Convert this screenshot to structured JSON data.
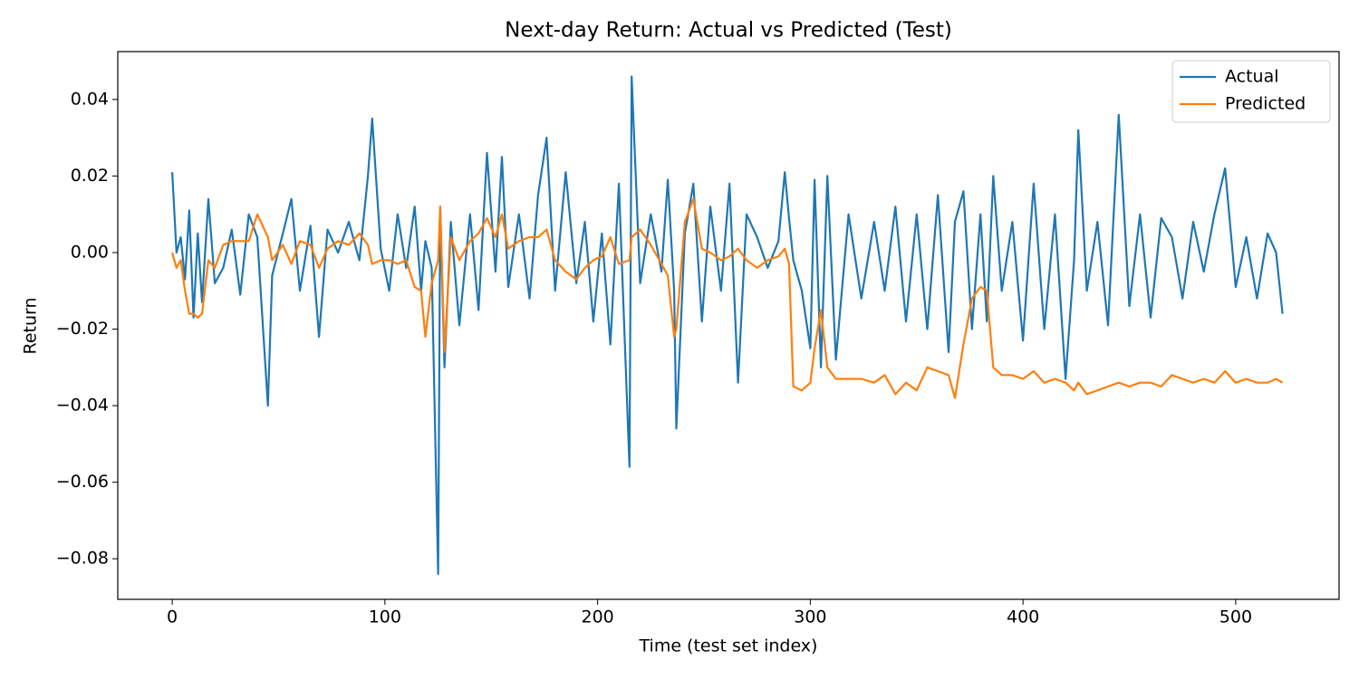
{
  "chart_data": {
    "type": "line",
    "title": "Next-day Return: Actual vs Predicted (Test)",
    "x_label": "Time (test set index)",
    "y_label": "Return",
    "x": [
      0,
      2,
      4,
      6,
      8,
      10,
      12,
      14,
      17,
      20,
      24,
      28,
      32,
      36,
      40,
      45,
      47,
      52,
      56,
      60,
      65,
      69,
      73,
      78,
      83,
      88,
      92,
      94,
      98,
      102,
      106,
      110,
      114,
      117,
      119,
      122,
      125,
      126,
      128,
      131,
      135,
      140,
      144,
      148,
      152,
      155,
      158,
      163,
      168,
      172,
      176,
      180,
      185,
      190,
      194,
      198,
      202,
      206,
      210,
      215,
      216,
      220,
      225,
      230,
      233,
      236,
      237,
      241,
      245,
      249,
      253,
      258,
      262,
      266,
      270,
      275,
      280,
      285,
      288,
      290,
      292,
      296,
      300,
      302,
      305,
      308,
      312,
      318,
      324,
      330,
      335,
      340,
      345,
      350,
      355,
      360,
      365,
      368,
      372,
      376,
      380,
      383,
      386,
      390,
      395,
      400,
      405,
      410,
      415,
      420,
      424,
      426,
      430,
      435,
      440,
      445,
      450,
      455,
      460,
      465,
      470,
      475,
      480,
      485,
      490,
      495,
      500,
      505,
      510,
      515,
      519,
      522
    ],
    "series": [
      {
        "name": "Actual",
        "color": "#1f77b4",
        "values": [
          0.021,
          0.0,
          0.004,
          -0.007,
          0.011,
          -0.017,
          0.005,
          -0.013,
          0.014,
          -0.008,
          -0.004,
          0.006,
          -0.011,
          0.01,
          0.004,
          -0.04,
          -0.006,
          0.005,
          0.014,
          -0.01,
          0.007,
          -0.022,
          0.006,
          0.0,
          0.008,
          -0.002,
          0.02,
          0.035,
          0.001,
          -0.01,
          0.01,
          -0.004,
          0.012,
          -0.01,
          0.003,
          -0.004,
          -0.084,
          0.012,
          -0.03,
          0.008,
          -0.019,
          0.01,
          -0.015,
          0.026,
          -0.005,
          0.025,
          -0.009,
          0.01,
          -0.012,
          0.015,
          0.03,
          -0.01,
          0.021,
          -0.008,
          0.008,
          -0.018,
          0.005,
          -0.024,
          0.018,
          -0.056,
          0.046,
          -0.008,
          0.01,
          -0.005,
          0.019,
          -0.01,
          -0.046,
          0.005,
          0.018,
          -0.018,
          0.012,
          -0.01,
          0.018,
          -0.034,
          0.01,
          0.004,
          -0.004,
          0.003,
          0.021,
          0.009,
          -0.002,
          -0.01,
          -0.025,
          0.019,
          -0.03,
          0.02,
          -0.028,
          0.01,
          -0.012,
          0.008,
          -0.01,
          0.012,
          -0.018,
          0.01,
          -0.02,
          0.015,
          -0.026,
          0.008,
          0.016,
          -0.02,
          0.01,
          -0.018,
          0.02,
          -0.01,
          0.008,
          -0.023,
          0.018,
          -0.02,
          0.01,
          -0.033,
          -0.002,
          0.032,
          -0.01,
          0.008,
          -0.019,
          0.036,
          -0.014,
          0.01,
          -0.017,
          0.009,
          0.004,
          -0.012,
          0.008,
          -0.005,
          0.01,
          0.022,
          -0.009,
          0.004,
          -0.012,
          0.005,
          0.0,
          -0.016
        ]
      },
      {
        "name": "Predicted",
        "color": "#ff7f0e",
        "values": [
          0.0,
          -0.004,
          -0.002,
          -0.01,
          -0.016,
          -0.016,
          -0.017,
          -0.016,
          -0.002,
          -0.004,
          0.002,
          0.003,
          0.003,
          0.003,
          0.01,
          0.004,
          -0.002,
          0.002,
          -0.003,
          0.003,
          0.002,
          -0.004,
          0.001,
          0.003,
          0.002,
          0.005,
          0.002,
          -0.003,
          -0.002,
          -0.002,
          -0.003,
          -0.002,
          -0.009,
          -0.01,
          -0.022,
          -0.008,
          -0.002,
          0.012,
          -0.026,
          0.004,
          -0.002,
          0.003,
          0.005,
          0.009,
          0.004,
          0.01,
          0.001,
          0.003,
          0.004,
          0.004,
          0.006,
          -0.002,
          -0.005,
          -0.007,
          -0.004,
          -0.002,
          -0.001,
          0.004,
          -0.003,
          -0.002,
          0.004,
          0.006,
          0.002,
          -0.003,
          -0.006,
          -0.022,
          -0.02,
          0.008,
          0.014,
          0.001,
          0.0,
          -0.002,
          -0.001,
          0.001,
          -0.002,
          -0.004,
          -0.002,
          -0.001,
          0.001,
          -0.003,
          -0.035,
          -0.036,
          -0.034,
          -0.025,
          -0.015,
          -0.03,
          -0.033,
          -0.033,
          -0.033,
          -0.034,
          -0.032,
          -0.037,
          -0.034,
          -0.036,
          -0.03,
          -0.031,
          -0.032,
          -0.038,
          -0.024,
          -0.012,
          -0.009,
          -0.01,
          -0.03,
          -0.032,
          -0.032,
          -0.033,
          -0.031,
          -0.034,
          -0.033,
          -0.034,
          -0.036,
          -0.034,
          -0.037,
          -0.036,
          -0.035,
          -0.034,
          -0.035,
          -0.034,
          -0.034,
          -0.035,
          -0.032,
          -0.033,
          -0.034,
          -0.033,
          -0.034,
          -0.031,
          -0.034,
          -0.033,
          -0.034,
          -0.034,
          -0.033,
          -0.034
        ]
      }
    ],
    "xlim": [
      -25.6,
      548.6
    ],
    "xticks": [
      0,
      100,
      200,
      300,
      400,
      500
    ],
    "ylim": [
      -0.0906,
      0.0525
    ],
    "yticks": [
      {
        "value": -0.08,
        "label": "−0.08"
      },
      {
        "value": -0.06,
        "label": "−0.06"
      },
      {
        "value": -0.04,
        "label": "−0.04"
      },
      {
        "value": -0.02,
        "label": "−0.02"
      },
      {
        "value": 0,
        "label": "0.00"
      },
      0.02,
      0.04
    ],
    "legend": "upper right"
  }
}
